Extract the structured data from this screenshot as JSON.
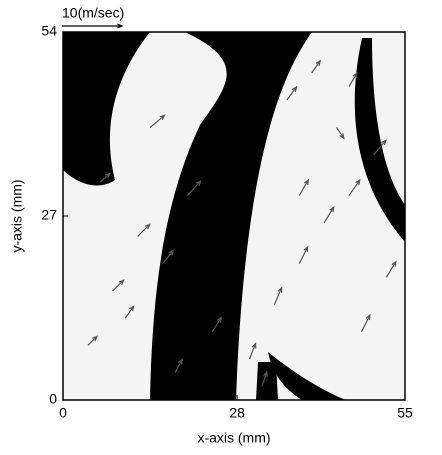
{
  "chart_data": {
    "type": "quiver",
    "vector_scale": {
      "value": 10,
      "label": "10(m/sec)"
    },
    "xlabel": "x-axis (mm)",
    "ylabel": "y-axis (mm)",
    "xlim": [
      0,
      55
    ],
    "ylim": [
      0,
      54
    ],
    "xticks": [
      0,
      28,
      55
    ],
    "yticks": [
      0,
      27,
      54
    ],
    "color": "#000000",
    "x": [
      4,
      8,
      12,
      6,
      10,
      16,
      20,
      14,
      18,
      24,
      30,
      34,
      38,
      42,
      46,
      50,
      36,
      40,
      44,
      48,
      52,
      32,
      38,
      46
    ],
    "y": [
      8,
      16,
      24,
      32,
      12,
      20,
      30,
      40,
      4,
      10,
      6,
      14,
      20,
      26,
      30,
      36,
      44,
      48,
      40,
      10,
      18,
      2,
      30,
      46
    ],
    "u": [
      1.5,
      1.8,
      2.0,
      1.6,
      1.4,
      1.8,
      2.2,
      2.4,
      1.2,
      1.5,
      1.0,
      1.2,
      1.4,
      1.6,
      1.8,
      2.0,
      1.6,
      1.4,
      1.2,
      1.4,
      1.6,
      0.8,
      1.5,
      1.3
    ],
    "v": [
      1.5,
      1.8,
      2.0,
      1.4,
      2.0,
      2.2,
      2.4,
      2.0,
      2.2,
      2.4,
      2.6,
      2.8,
      2.8,
      2.6,
      2.6,
      2.4,
      2.2,
      2.0,
      -1.8,
      2.8,
      2.6,
      2.4,
      2.6,
      2.2
    ]
  }
}
